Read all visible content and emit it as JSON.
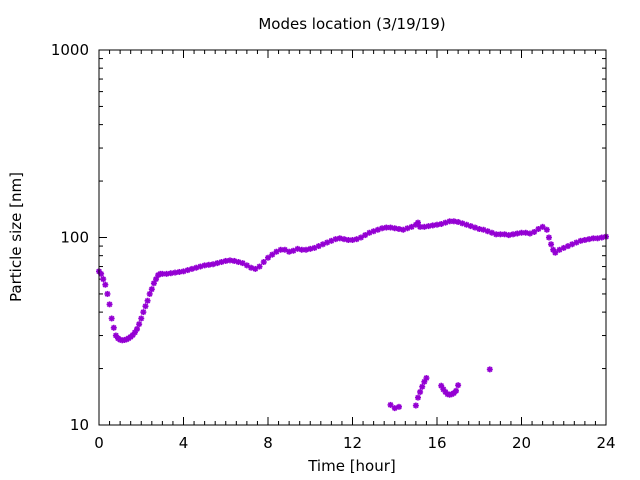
{
  "chart_data": {
    "type": "scatter",
    "title": "Modes location (3/19/19)",
    "xlabel": "Time [hour]",
    "ylabel": "Particle size [nm]",
    "xlim": [
      0,
      24
    ],
    "ylim": [
      10,
      1000
    ],
    "yscale": "log",
    "grid": false,
    "x_ticks": [
      0,
      4,
      8,
      12,
      16,
      20,
      24
    ],
    "x_tick_labels": [
      "0",
      "4",
      "8",
      "12",
      "16",
      "20",
      "24"
    ],
    "y_ticks": [
      10,
      100,
      1000
    ],
    "y_tick_labels": [
      "10",
      "100",
      "1000"
    ],
    "marker_color": "#9400D3",
    "series": [
      {
        "points": [
          [
            0.0,
            66
          ],
          [
            0.1,
            64
          ],
          [
            0.2,
            60
          ],
          [
            0.3,
            56
          ],
          [
            0.4,
            50
          ],
          [
            0.5,
            44
          ],
          [
            0.6,
            37
          ],
          [
            0.7,
            33
          ],
          [
            0.8,
            30
          ],
          [
            0.9,
            29
          ],
          [
            1.0,
            28.5
          ],
          [
            1.1,
            28.3
          ],
          [
            1.2,
            28.4
          ],
          [
            1.3,
            28.6
          ],
          [
            1.4,
            29
          ],
          [
            1.5,
            29.5
          ],
          [
            1.6,
            30.2
          ],
          [
            1.7,
            31.2
          ],
          [
            1.8,
            32.5
          ],
          [
            1.9,
            34.5
          ],
          [
            2.0,
            37
          ],
          [
            2.1,
            40
          ],
          [
            2.2,
            43
          ],
          [
            2.3,
            46
          ],
          [
            2.4,
            50
          ],
          [
            2.5,
            53
          ],
          [
            2.6,
            57
          ],
          [
            2.7,
            60
          ],
          [
            2.8,
            63
          ],
          [
            2.9,
            64
          ],
          [
            3.0,
            64
          ],
          [
            3.2,
            64
          ],
          [
            3.4,
            64.5
          ],
          [
            3.6,
            65
          ],
          [
            3.8,
            65.5
          ],
          [
            4.0,
            66
          ],
          [
            4.2,
            67
          ],
          [
            4.4,
            68
          ],
          [
            4.6,
            69
          ],
          [
            4.8,
            70
          ],
          [
            5.0,
            71
          ],
          [
            5.2,
            71.5
          ],
          [
            5.4,
            72
          ],
          [
            5.6,
            73
          ],
          [
            5.8,
            74
          ],
          [
            6.0,
            75
          ],
          [
            6.2,
            75.5
          ],
          [
            6.4,
            75
          ],
          [
            6.6,
            74
          ],
          [
            6.8,
            73
          ],
          [
            7.0,
            71
          ],
          [
            7.2,
            69
          ],
          [
            7.4,
            68
          ],
          [
            7.6,
            70
          ],
          [
            7.8,
            74
          ],
          [
            8.0,
            78
          ],
          [
            8.2,
            81
          ],
          [
            8.4,
            84
          ],
          [
            8.6,
            86
          ],
          [
            8.8,
            86
          ],
          [
            9.0,
            84
          ],
          [
            9.2,
            85
          ],
          [
            9.4,
            87
          ],
          [
            9.6,
            86
          ],
          [
            9.8,
            86
          ],
          [
            10.0,
            87
          ],
          [
            10.2,
            88
          ],
          [
            10.4,
            90
          ],
          [
            10.6,
            92
          ],
          [
            10.8,
            94
          ],
          [
            11.0,
            96
          ],
          [
            11.2,
            98
          ],
          [
            11.4,
            99
          ],
          [
            11.6,
            98
          ],
          [
            11.8,
            97
          ],
          [
            12.0,
            97
          ],
          [
            12.2,
            98
          ],
          [
            12.4,
            100
          ],
          [
            12.6,
            103
          ],
          [
            12.8,
            106
          ],
          [
            13.0,
            108
          ],
          [
            13.2,
            110
          ],
          [
            13.4,
            112
          ],
          [
            13.6,
            113
          ],
          [
            13.8,
            113
          ],
          [
            14.0,
            112
          ],
          [
            14.2,
            111
          ],
          [
            14.4,
            110
          ],
          [
            14.6,
            112
          ],
          [
            14.8,
            114
          ],
          [
            15.0,
            117
          ],
          [
            15.1,
            120
          ],
          [
            15.2,
            114
          ],
          [
            15.4,
            114
          ],
          [
            15.6,
            115
          ],
          [
            15.8,
            116
          ],
          [
            16.0,
            117
          ],
          [
            16.2,
            118
          ],
          [
            16.4,
            120
          ],
          [
            16.6,
            122
          ],
          [
            16.8,
            122
          ],
          [
            17.0,
            121
          ],
          [
            17.2,
            119
          ],
          [
            17.4,
            117
          ],
          [
            17.6,
            115
          ],
          [
            17.8,
            113
          ],
          [
            18.0,
            111
          ],
          [
            18.2,
            110
          ],
          [
            18.4,
            108
          ],
          [
            18.6,
            106
          ],
          [
            18.8,
            104
          ],
          [
            19.0,
            104
          ],
          [
            19.2,
            104
          ],
          [
            19.4,
            103
          ],
          [
            19.6,
            104
          ],
          [
            19.8,
            105
          ],
          [
            20.0,
            106
          ],
          [
            20.2,
            106
          ],
          [
            20.4,
            105
          ],
          [
            20.6,
            107
          ],
          [
            20.8,
            111
          ],
          [
            21.0,
            114
          ],
          [
            21.2,
            110
          ],
          [
            21.3,
            100
          ],
          [
            21.4,
            92
          ],
          [
            21.5,
            86
          ],
          [
            21.6,
            83
          ],
          [
            21.8,
            86
          ],
          [
            22.0,
            88
          ],
          [
            22.2,
            90
          ],
          [
            22.4,
            92
          ],
          [
            22.6,
            94
          ],
          [
            22.8,
            96
          ],
          [
            23.0,
            97
          ],
          [
            23.2,
            98
          ],
          [
            23.4,
            99
          ],
          [
            23.6,
            99
          ],
          [
            23.8,
            100
          ],
          [
            24.0,
            101
          ],
          [
            13.8,
            12.8
          ],
          [
            14.0,
            12.3
          ],
          [
            14.2,
            12.5
          ],
          [
            15.0,
            12.7
          ],
          [
            15.1,
            14
          ],
          [
            15.2,
            15
          ],
          [
            15.3,
            16
          ],
          [
            15.4,
            17
          ],
          [
            15.5,
            17.8
          ],
          [
            16.2,
            16.2
          ],
          [
            16.3,
            15.5
          ],
          [
            16.4,
            15
          ],
          [
            16.5,
            14.6
          ],
          [
            16.6,
            14.5
          ],
          [
            16.7,
            14.6
          ],
          [
            16.8,
            14.8
          ],
          [
            16.9,
            15.2
          ],
          [
            17.0,
            16.3
          ],
          [
            18.5,
            19.8
          ]
        ]
      }
    ]
  }
}
